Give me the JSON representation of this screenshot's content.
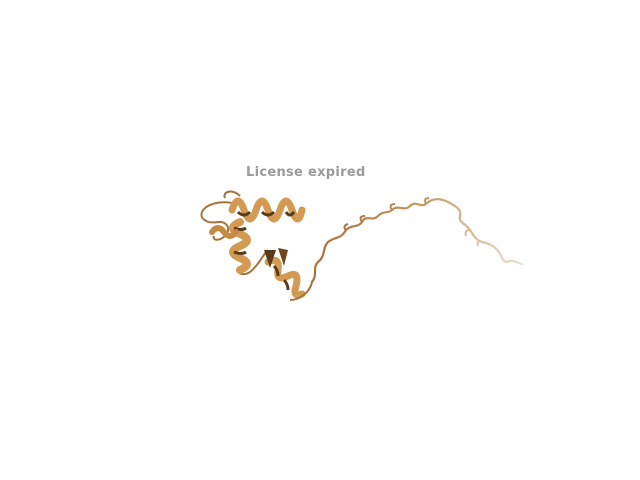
{
  "viewer": {
    "watermark_text": "License expired"
  },
  "render": {
    "colors": {
      "background": "#ffffff",
      "ribbon_light": "#d29a52",
      "ribbon_mid": "#b07a38",
      "ribbon_dark": "#5a3a18",
      "coil": "#a8733a",
      "coil_faded": "#e2d2bd",
      "watermark": "#9a9a9a"
    }
  }
}
